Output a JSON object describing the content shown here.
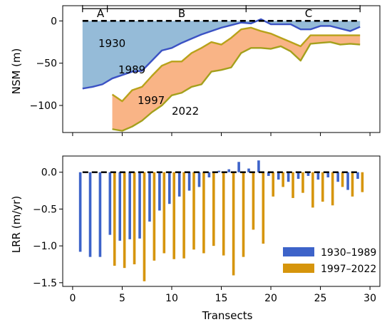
{
  "chart_data": [
    {
      "type": "area",
      "ylabel": "NSM (m)",
      "xlim": [
        -1,
        31
      ],
      "ylim": [
        -132,
        18
      ],
      "yticks": [
        0,
        -50,
        -100
      ],
      "grid": false,
      "x": [
        1,
        2,
        3,
        4,
        5,
        6,
        7,
        8,
        9,
        10,
        11,
        12,
        13,
        14,
        15,
        16,
        17,
        18,
        19,
        20,
        21,
        22,
        23,
        24,
        25,
        26,
        27,
        28,
        29
      ],
      "series": [
        {
          "name": "1989",
          "values": [
            -80,
            -78,
            -75,
            -68,
            -64,
            -60,
            -59,
            -47,
            -35,
            -32,
            -26,
            -21,
            -16,
            -12,
            -8,
            -5,
            -2,
            -3,
            2,
            -4,
            -4,
            -4,
            -10,
            -10,
            -6,
            -6,
            -9,
            -12,
            -7
          ]
        },
        {
          "name": "1997",
          "values": [
            null,
            null,
            null,
            -87,
            -95,
            -82,
            -78,
            -65,
            -53,
            -48,
            -48,
            -38,
            -32,
            -25,
            -28,
            -20,
            -10,
            -8,
            -12,
            -15,
            -20,
            -25,
            -30,
            -17,
            -17,
            -17,
            -17,
            -17,
            -17
          ]
        },
        {
          "name": "2022",
          "values": [
            null,
            null,
            null,
            -128,
            -130,
            -125,
            -118,
            -108,
            -100,
            -88,
            -85,
            -78,
            -75,
            -60,
            -58,
            -55,
            -38,
            -32,
            -32,
            -33,
            -30,
            -36,
            -47,
            -27,
            -26,
            -25,
            -28,
            -27,
            -28
          ]
        }
      ],
      "labels": [
        "1930",
        "1989",
        "1997",
        "2022"
      ],
      "reference_line": 0,
      "regions": [
        {
          "label": "A",
          "from": 1,
          "to": 3.5
        },
        {
          "label": "B",
          "from": 3.5,
          "to": 17.5
        },
        {
          "label": "C",
          "from": 17.5,
          "to": 29
        }
      ],
      "colors": {
        "fill_1930_1989": "#8fb7d6",
        "fill_1997_2022": "#f9b07f",
        "line_1989": "#3b52c4",
        "line_1997": "#b8a21a",
        "line_2022": "#a4a01c"
      }
    },
    {
      "type": "bar",
      "xlabel": "Transects",
      "ylabel": "LRR (m/yr)",
      "xlim": [
        -1,
        31
      ],
      "ylim": [
        -1.55,
        0.22
      ],
      "xticks": [
        0,
        5,
        10,
        15,
        20,
        25,
        30
      ],
      "yticks": [
        0.0,
        -0.5,
        -1.0,
        -1.5
      ],
      "grid": false,
      "reference_line": 0,
      "legend": "lower-right",
      "x": [
        1,
        2,
        3,
        4,
        5,
        6,
        7,
        8,
        9,
        10,
        11,
        12,
        13,
        14,
        15,
        16,
        17,
        18,
        19,
        20,
        21,
        22,
        23,
        24,
        25,
        26,
        27,
        28,
        29
      ],
      "series": [
        {
          "name": "1930–1989",
          "color": "#3d63c9",
          "values": [
            -1.08,
            -1.15,
            -1.15,
            -0.85,
            -0.93,
            -0.91,
            -0.9,
            -0.67,
            -0.52,
            -0.43,
            -0.33,
            -0.25,
            -0.2,
            -0.07,
            0.02,
            0.04,
            0.14,
            0.05,
            0.16,
            -0.05,
            -0.1,
            -0.13,
            -0.09,
            -0.05,
            -0.1,
            -0.07,
            -0.13,
            -0.24,
            -0.09
          ]
        },
        {
          "name": "1997–2022",
          "color": "#d6950c",
          "values": [
            null,
            null,
            null,
            -1.27,
            -1.3,
            -1.25,
            -1.48,
            -1.2,
            -1.1,
            -1.18,
            -1.17,
            -1.05,
            -1.1,
            -1.0,
            -1.13,
            -1.4,
            -1.15,
            -0.78,
            -0.97,
            -0.33,
            -0.2,
            -0.35,
            -0.28,
            -0.48,
            -0.4,
            -0.45,
            -0.2,
            -0.33,
            -0.27
          ]
        }
      ],
      "accent_colors": [
        "#3d63c9",
        "#d6950c",
        "#8a5cc0",
        "#3f8ec4"
      ]
    }
  ]
}
